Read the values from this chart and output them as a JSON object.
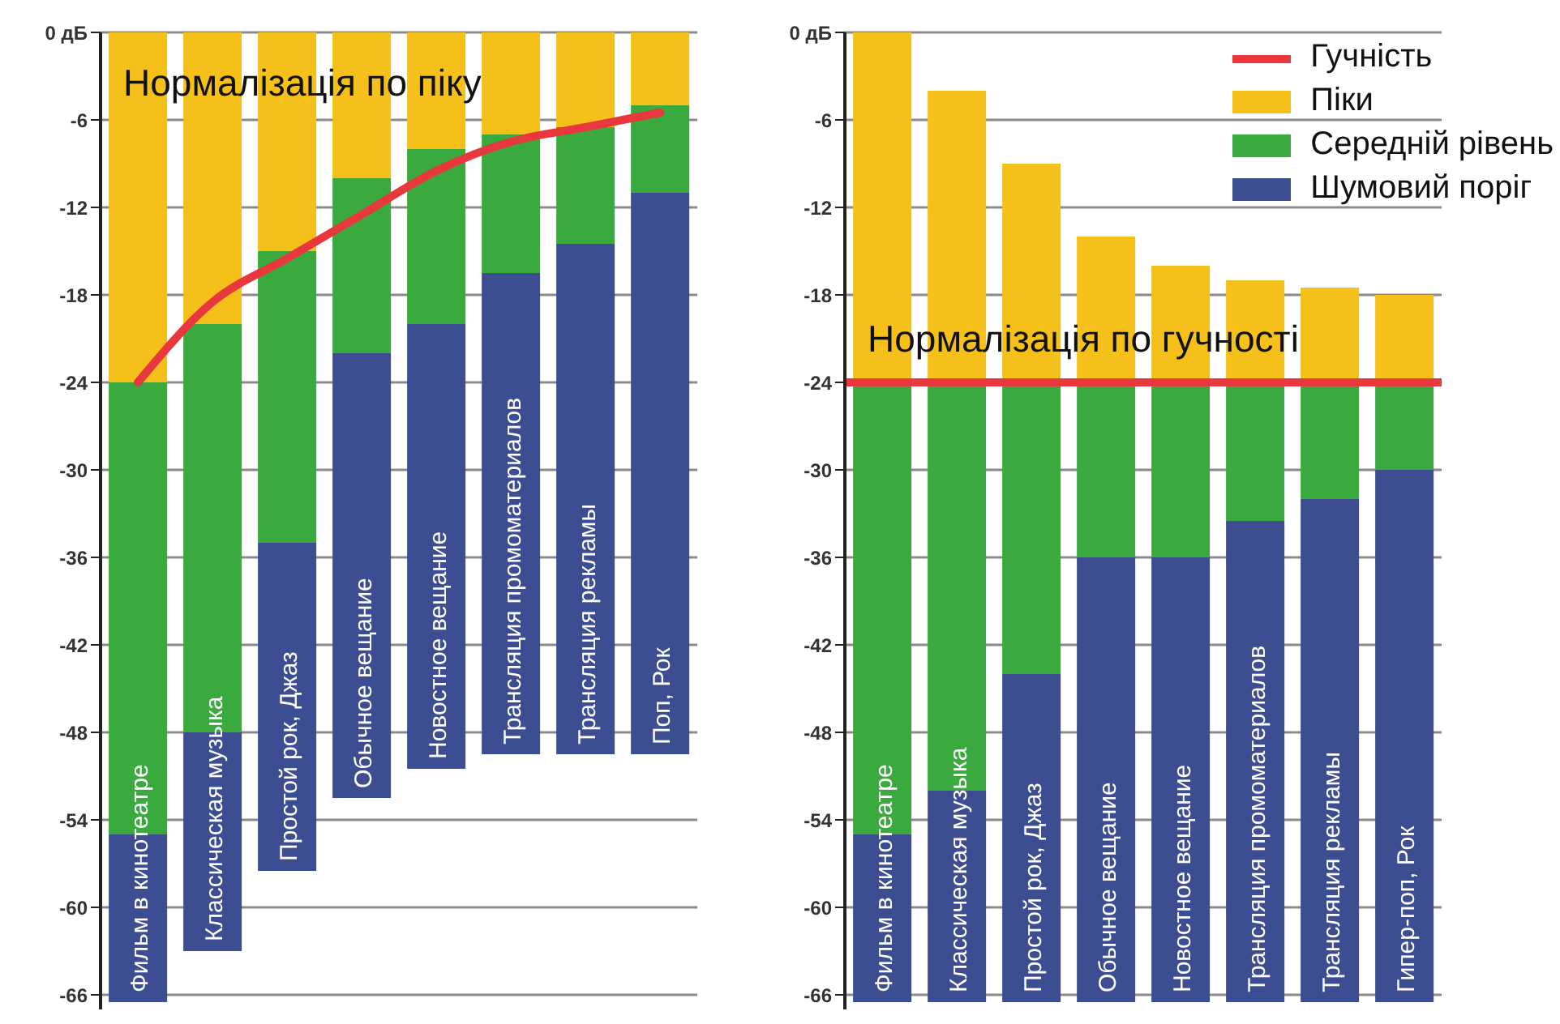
{
  "chart_data": [
    {
      "type": "bar",
      "stacked": true,
      "grid": "y",
      "legend": false,
      "annotations": [
        "Нормалізація по піку"
      ],
      "categories": [
        "Фильм в кинотеатре",
        "Классическая музыка",
        "Простой рок, Джаз",
        "Обычное вещание",
        "Новостное вещание",
        "Трансляция промоматериалов",
        "Трансляция рекламы",
        "Поп, Рок"
      ],
      "series": [
        {
          "color": "#f5c01a",
          "values": [
            -24,
            -20,
            -15,
            -10,
            -8,
            -7,
            -6.5,
            -5
          ]
        },
        {
          "color": "#3aaa3f",
          "values": [
            -31,
            -28,
            -20,
            -12,
            -12,
            -9.5,
            -8,
            -6
          ]
        },
        {
          "color": "#3d4d91",
          "values": [
            -11.5,
            -15,
            -22.5,
            -30.5,
            -30.5,
            -33,
            -35,
            -38.5
          ]
        },
        {
          "type": "line",
          "color": "#e8383d",
          "values": [
            -24,
            -18.5,
            -15.5,
            -12.5,
            -9.5,
            -7.5,
            -6.5,
            -5.5
          ]
        }
      ],
      "ylim": [
        -67,
        0
      ],
      "yticks": [
        {
          "value": 0,
          "label": "0 дБ"
        },
        -6,
        -12,
        -18,
        -24,
        -30,
        -36,
        -42,
        -48,
        -54,
        -60,
        -66
      ]
    },
    {
      "type": "bar",
      "grid": "y",
      "legend": "top right",
      "annotations": [
        {
          "text": "Нормалізація по гучності",
          "y": -24
        }
      ],
      "categories": [
        "Фильм в кинотеатре",
        "Классическая музыка",
        "Простой рок, Джаз",
        "Обычное вещание",
        "Новостное вещание",
        "Трансляция промоматериалов",
        "Трансляция рекламы",
        "Гипер-поп, Рок"
      ],
      "series": [
        {
          "name": "Шумовий поріг",
          "color": "#3d4d91",
          "base": [
            -66.5,
            -66.5,
            -66.5,
            -66.5,
            -66.5,
            -66.5,
            -66.5,
            -66.5
          ],
          "values": [
            11.5,
            14.5,
            22.5,
            30.5,
            30.5,
            33,
            34.5,
            36.5
          ]
        },
        {
          "name": "Середній рівень",
          "color": "#3aaa3f",
          "base": [
            -55,
            -52,
            -44,
            -36,
            -36,
            -33.5,
            -32,
            -30
          ],
          "values": [
            31,
            28,
            20,
            12,
            12,
            9.5,
            8,
            6
          ]
        },
        {
          "name": "Піки",
          "color": "#f5c01a",
          "base": [
            -24,
            -24,
            -24,
            -24,
            -24,
            -24,
            -24,
            -24
          ],
          "values": [
            24,
            20,
            15,
            10,
            8,
            7,
            6.5,
            6
          ]
        }
      ],
      "ref_lines": [
        {
          "axis": "y",
          "value": -24,
          "label": "Гучність",
          "color": "#e8383d"
        }
      ],
      "ylim": [
        -67,
        0
      ],
      "yticks": [
        {
          "value": 0,
          "label": "0 дБ"
        },
        -6,
        -12,
        -18,
        -24,
        -30,
        -36,
        -42,
        -48,
        -54,
        -60,
        -66
      ]
    }
  ]
}
